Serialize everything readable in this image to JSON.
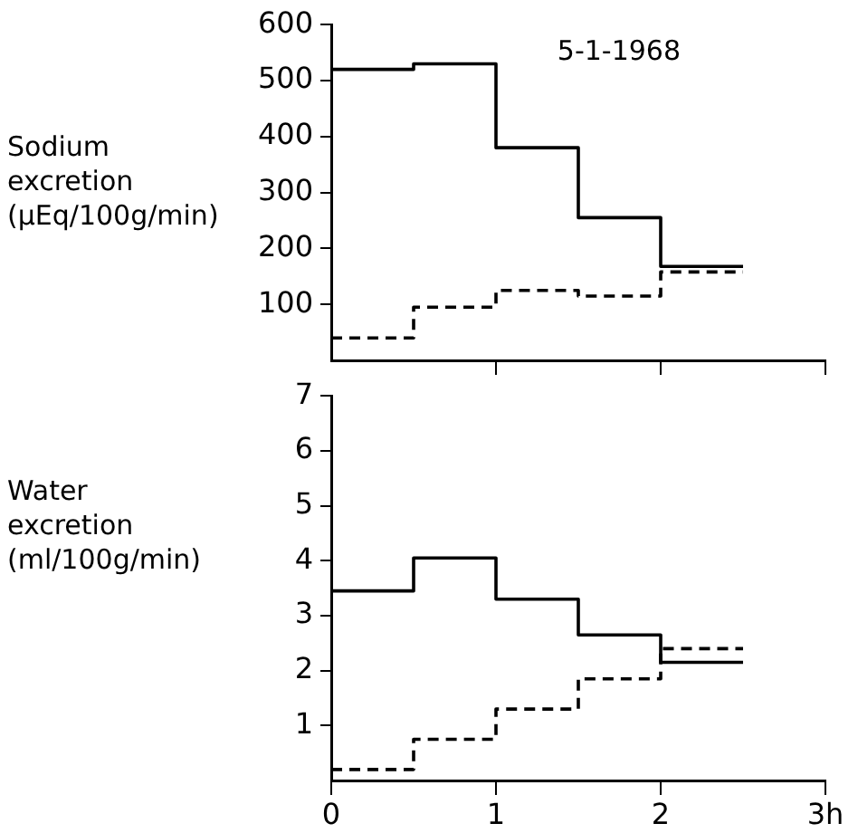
{
  "chart_data": [
    {
      "type": "step",
      "ylabel": "Sodium excretion (μEq/100g/min)",
      "annotations": [
        "5-1-1968"
      ],
      "x": [
        0,
        0.5,
        1,
        1.5,
        2,
        2.5
      ],
      "xlim": [
        0,
        3
      ],
      "xticks": [
        {
          "value": 1,
          "label": null
        },
        {
          "value": 2,
          "label": null
        },
        {
          "value": 3,
          "label": null
        }
      ],
      "ylim": [
        0,
        600
      ],
      "yticks": [
        100,
        200,
        300,
        400,
        500,
        600
      ],
      "tick_labels": "y",
      "grid": false,
      "legend": false,
      "marker": "none",
      "series": [
        {
          "color": "#000000",
          "line_style": "solid",
          "values": [
            520,
            530,
            380,
            255,
            168,
            168
          ]
        },
        {
          "color": "#000000",
          "line_style": "dashed",
          "values": [
            40,
            95,
            125,
            115,
            158,
            158
          ]
        }
      ]
    },
    {
      "type": "step",
      "ylabel": "Water excretion (ml/100g/min)",
      "x": [
        0,
        0.5,
        1,
        1.5,
        2,
        2.5
      ],
      "xlim": [
        0,
        3
      ],
      "xticks": [
        0,
        1,
        2,
        {
          "value": 3,
          "label": "3h"
        }
      ],
      "ylim": [
        0,
        7
      ],
      "yticks": [
        1,
        2,
        3,
        4,
        5,
        6,
        7
      ],
      "grid": false,
      "legend": false,
      "marker": "none",
      "series": [
        {
          "color": "#000000",
          "line_style": "solid",
          "values": [
            3.45,
            4.05,
            3.3,
            2.65,
            2.15,
            2.15
          ]
        },
        {
          "color": "#000000",
          "line_style": "dashed",
          "values": [
            0.2,
            0.75,
            1.3,
            1.85,
            2.4,
            2.4
          ]
        }
      ]
    }
  ]
}
